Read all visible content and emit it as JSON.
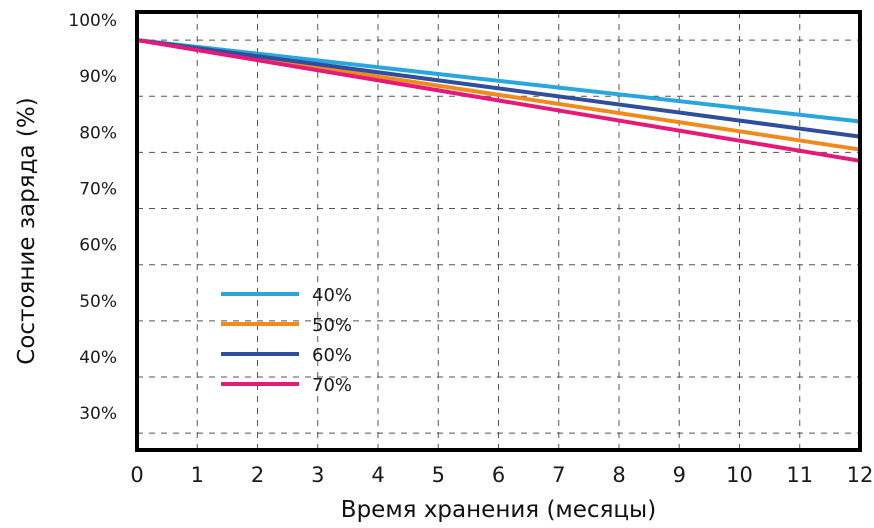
{
  "chart_data": {
    "type": "line",
    "title": "",
    "xlabel": "Время хранения (месяцы)",
    "ylabel": "Состояние заряда (%)",
    "x": [
      0,
      12
    ],
    "xticks": [
      "0",
      "1",
      "2",
      "3",
      "4",
      "5",
      "6",
      "7",
      "8",
      "9",
      "10",
      "11",
      "12"
    ],
    "yticks": [
      "30%",
      "40%",
      "50%",
      "60%",
      "70%",
      "80%",
      "90%",
      "100%"
    ],
    "xlim": [
      0,
      12
    ],
    "ylim": [
      27,
      105
    ],
    "y_tick_values": [
      30,
      40,
      50,
      60,
      70,
      80,
      90,
      100
    ],
    "grid": true,
    "legend_position": "lower-left",
    "series": [
      {
        "name": "40%",
        "color": "#2aa6de",
        "values": [
          100,
          85.5
        ]
      },
      {
        "name": "50%",
        "color": "#f08a1c",
        "values": [
          100,
          80.5
        ]
      },
      {
        "name": "60%",
        "color": "#2f4f9c",
        "values": [
          100,
          82.8
        ]
      },
      {
        "name": "70%",
        "color": "#e6197a",
        "values": [
          100,
          78.5
        ]
      }
    ]
  }
}
